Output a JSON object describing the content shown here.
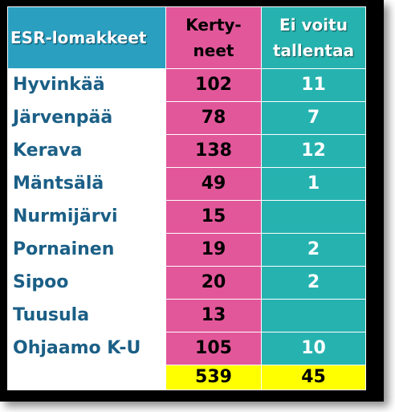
{
  "table": {
    "header": {
      "name": "ESR-lomakkeet",
      "kertyneet_line1": "Kerty-",
      "kertyneet_line2": "neet",
      "ei_line1": "Ei voitu",
      "ei_line2": "tallentaa"
    },
    "rows": [
      {
        "name": "Hyvinkää",
        "kertyneet": "102",
        "ei_voitu": "11"
      },
      {
        "name": "Järvenpää",
        "kertyneet": "78",
        "ei_voitu": "7"
      },
      {
        "name": "Kerava",
        "kertyneet": "138",
        "ei_voitu": "12"
      },
      {
        "name": "Mäntsälä",
        "kertyneet": "49",
        "ei_voitu": "1"
      },
      {
        "name": "Nurmijärvi",
        "kertyneet": "15",
        "ei_voitu": ""
      },
      {
        "name": "Pornainen",
        "kertyneet": "19",
        "ei_voitu": "2"
      },
      {
        "name": "Sipoo",
        "kertyneet": "20",
        "ei_voitu": "2"
      },
      {
        "name": "Tuusula",
        "kertyneet": "13",
        "ei_voitu": ""
      },
      {
        "name": "Ohjaamo K-U",
        "kertyneet": "105",
        "ei_voitu": "10"
      }
    ],
    "totals": {
      "name": "",
      "kertyneet": "539",
      "ei_voitu": "45"
    }
  },
  "colors": {
    "name_text": "#1b5f86",
    "header_name_bg": "#2a9fc0",
    "kertyneet_bg": "#e2579a",
    "ei_voitu_bg": "#26b3b0",
    "totals_bg": "#ffff00"
  }
}
